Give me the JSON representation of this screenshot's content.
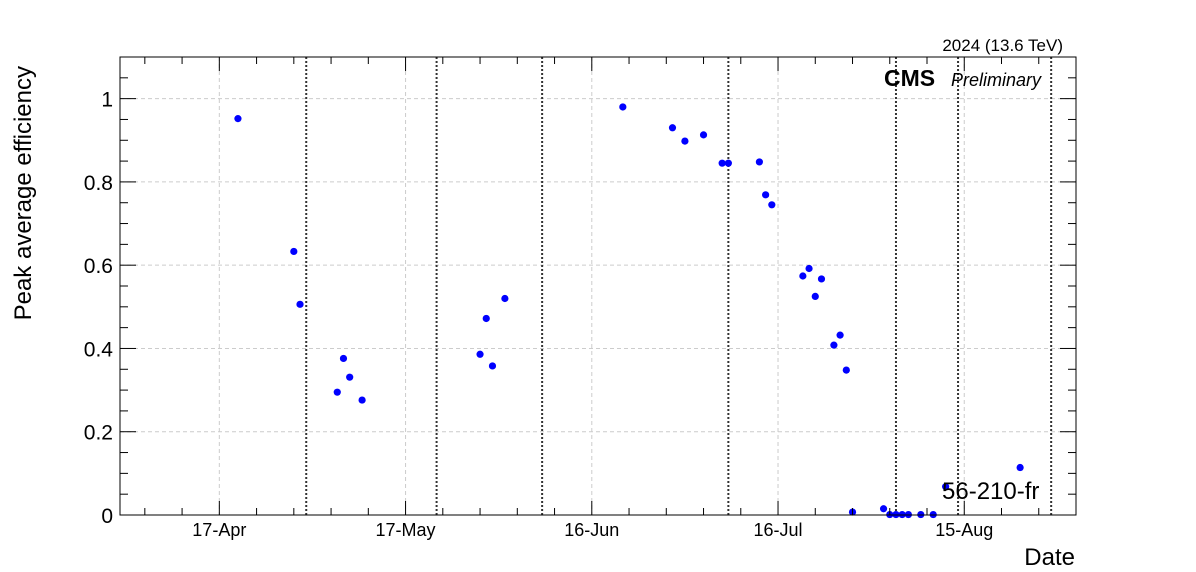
{
  "chart_data": {
    "type": "scatter",
    "title": "",
    "energy_label": "2024 (13.6 TeV)",
    "experiment": "CMS",
    "status": "Preliminary",
    "xlabel": "Date",
    "ylabel": "Peak average efficiency",
    "annotation": "56-210-fr",
    "xlim": [
      "2024-04-01",
      "2024-09-02"
    ],
    "ylim": [
      0,
      1.1
    ],
    "x_ticks": [
      {
        "date": "2024-04-17",
        "label": "17-Apr"
      },
      {
        "date": "2024-05-17",
        "label": "17-May"
      },
      {
        "date": "2024-06-16",
        "label": "16-Jun"
      },
      {
        "date": "2024-07-16",
        "label": "16-Jul"
      },
      {
        "date": "2024-08-15",
        "label": "15-Aug"
      }
    ],
    "y_ticks": [
      0,
      0.2,
      0.4,
      0.6,
      0.8,
      1
    ],
    "y_tick_labels": [
      "0",
      "0.2",
      "0.4",
      "0.6",
      "0.8",
      "1"
    ],
    "grid": true,
    "marker_color": "#0000ff",
    "separator_dates": [
      "2024-05-01",
      "2024-05-22",
      "2024-06-08",
      "2024-07-08",
      "2024-08-04",
      "2024-08-14",
      "2024-08-29"
    ],
    "points": [
      {
        "x": "2024-04-20",
        "y": 0.952
      },
      {
        "x": "2024-04-29",
        "y": 0.633
      },
      {
        "x": "2024-04-30",
        "y": 0.506
      },
      {
        "x": "2024-05-06",
        "y": 0.295
      },
      {
        "x": "2024-05-07",
        "y": 0.376
      },
      {
        "x": "2024-05-08",
        "y": 0.331
      },
      {
        "x": "2024-05-10",
        "y": 0.276
      },
      {
        "x": "2024-05-29",
        "y": 0.386
      },
      {
        "x": "2024-05-30",
        "y": 0.472
      },
      {
        "x": "2024-05-31",
        "y": 0.358
      },
      {
        "x": "2024-06-02",
        "y": 0.52
      },
      {
        "x": "2024-06-21",
        "y": 0.98
      },
      {
        "x": "2024-06-29",
        "y": 0.93
      },
      {
        "x": "2024-07-01",
        "y": 0.898
      },
      {
        "x": "2024-07-04",
        "y": 0.913
      },
      {
        "x": "2024-07-07",
        "y": 0.845
      },
      {
        "x": "2024-07-08",
        "y": 0.845
      },
      {
        "x": "2024-07-13",
        "y": 0.848
      },
      {
        "x": "2024-07-14",
        "y": 0.769
      },
      {
        "x": "2024-07-15",
        "y": 0.745
      },
      {
        "x": "2024-07-20",
        "y": 0.574
      },
      {
        "x": "2024-07-21",
        "y": 0.592
      },
      {
        "x": "2024-07-22",
        "y": 0.525
      },
      {
        "x": "2024-07-23",
        "y": 0.567
      },
      {
        "x": "2024-07-25",
        "y": 0.408
      },
      {
        "x": "2024-07-26",
        "y": 0.432
      },
      {
        "x": "2024-07-27",
        "y": 0.348
      },
      {
        "x": "2024-07-28",
        "y": 0.007
      },
      {
        "x": "2024-08-02",
        "y": 0.015
      },
      {
        "x": "2024-08-03",
        "y": 0.001
      },
      {
        "x": "2024-08-04",
        "y": 0.001
      },
      {
        "x": "2024-08-05",
        "y": 0.001
      },
      {
        "x": "2024-08-06",
        "y": 0.001
      },
      {
        "x": "2024-08-08",
        "y": 0.001
      },
      {
        "x": "2024-08-10",
        "y": 0.001
      },
      {
        "x": "2024-08-12",
        "y": 0.068
      },
      {
        "x": "2024-08-24",
        "y": 0.114
      }
    ]
  }
}
